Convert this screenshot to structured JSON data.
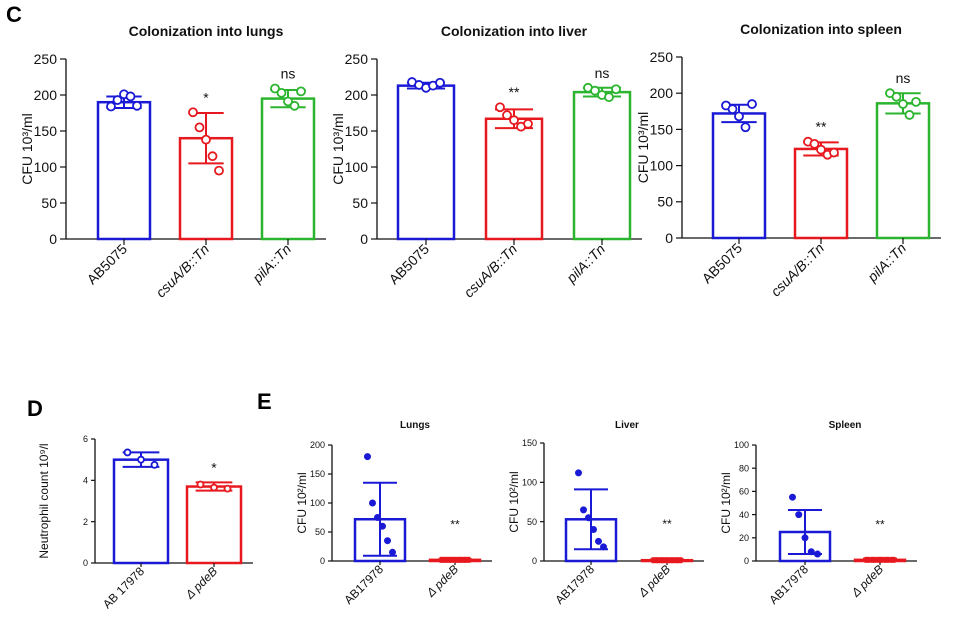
{
  "panels": [
    {
      "letter": "C"
    },
    {
      "letter": "D"
    },
    {
      "letter": "E"
    }
  ],
  "chart_data": [
    {
      "type": "bar",
      "panel": "C",
      "title": "Colonization into lungs",
      "ylabel": "CFU 10³/ml",
      "xlabel": "",
      "ylim": [
        0,
        250
      ],
      "yticks": [
        0,
        50,
        100,
        150,
        200,
        250
      ],
      "categories": [
        "AB5075",
        "csuA/B::Tn",
        "pilA::Tn"
      ],
      "italic_categories": [
        false,
        true,
        true
      ],
      "colors": [
        "#1a1ad6",
        "#e8191e",
        "#2bb52e"
      ],
      "values": [
        190,
        140,
        195
      ],
      "errors": [
        8,
        35,
        12
      ],
      "points": [
        [
          184,
          193,
          201,
          198,
          185
        ],
        [
          176,
          155,
          138,
          115,
          95
        ],
        [
          209,
          203,
          191,
          185,
          205
        ]
      ],
      "significance": [
        "",
        "*",
        "ns"
      ]
    },
    {
      "type": "bar",
      "panel": "C",
      "title": "Colonization into liver",
      "ylabel": "CFU 10³/ml",
      "xlabel": "",
      "ylim": [
        0,
        250
      ],
      "yticks": [
        0,
        50,
        100,
        150,
        200,
        250
      ],
      "categories": [
        "AB5075",
        "csuA/B::Tn",
        "pilA::Tn"
      ],
      "italic_categories": [
        false,
        true,
        true
      ],
      "colors": [
        "#1a1ad6",
        "#e8191e",
        "#2bb52e"
      ],
      "values": [
        213,
        167,
        204
      ],
      "errors": [
        4,
        13,
        6
      ],
      "points": [
        [
          218,
          214,
          210,
          213,
          217
        ],
        [
          183,
          172,
          165,
          156,
          160
        ],
        [
          210,
          206,
          200,
          197,
          208
        ]
      ],
      "significance": [
        "",
        "**",
        "ns"
      ]
    },
    {
      "type": "bar",
      "panel": "C",
      "title": "Colonization into spleen",
      "ylabel": "CFU 10³/ml",
      "xlabel": "",
      "ylim": [
        0,
        250
      ],
      "yticks": [
        0,
        50,
        100,
        150,
        200,
        250
      ],
      "categories": [
        "AB5075",
        "csuA/B::Tn",
        "pilA::Tn"
      ],
      "italic_categories": [
        false,
        true,
        true
      ],
      "colors": [
        "#1a1ad6",
        "#e8191e",
        "#2bb52e"
      ],
      "values": [
        172,
        123,
        186
      ],
      "errors": [
        12,
        9,
        14
      ],
      "points": [
        [
          183,
          178,
          168,
          153,
          185
        ],
        [
          133,
          130,
          122,
          115,
          118
        ],
        [
          200,
          195,
          185,
          170,
          188
        ]
      ],
      "significance": [
        "",
        "**",
        "ns"
      ]
    },
    {
      "type": "bar",
      "panel": "D",
      "title": "",
      "ylabel": "Neutrophil count 10⁹/l",
      "xlabel": "",
      "ylim": [
        0,
        6
      ],
      "yticks": [
        0,
        2,
        4,
        6
      ],
      "categories": [
        "AB 17978",
        "Δ pdeB"
      ],
      "italic_categories": [
        false,
        true
      ],
      "colors": [
        "#1a1ad6",
        "#e8191e"
      ],
      "values": [
        5.0,
        3.7
      ],
      "errors": [
        0.35,
        0.2
      ],
      "points": [
        [
          5.35,
          5.0,
          4.75
        ],
        [
          3.8,
          3.65,
          3.6
        ]
      ],
      "significance": [
        "",
        "*"
      ]
    },
    {
      "type": "bar",
      "panel": "E",
      "title": "Lungs",
      "ylabel": "CFU 10²/ml",
      "xlabel": "",
      "ylim": [
        0,
        200
      ],
      "yticks": [
        0,
        50,
        100,
        150,
        200
      ],
      "categories": [
        "AB17978",
        "Δ pdeB"
      ],
      "italic_categories": [
        false,
        true
      ],
      "colors": [
        "#1a1ad6",
        "#e8191e"
      ],
      "values": [
        72,
        2
      ],
      "errors": [
        63,
        1
      ],
      "points": [
        [
          180,
          100,
          75,
          60,
          35,
          15
        ],
        [
          2,
          2,
          2,
          2,
          2,
          2
        ]
      ],
      "significance": [
        "",
        "**"
      ]
    },
    {
      "type": "bar",
      "panel": "E",
      "title": "Liver",
      "ylabel": "CFU 10²/ml",
      "xlabel": "",
      "ylim": [
        0,
        150
      ],
      "yticks": [
        0,
        50,
        100,
        150
      ],
      "categories": [
        "AB17978",
        "Δ pdeB"
      ],
      "italic_categories": [
        false,
        true
      ],
      "colors": [
        "#1a1ad6",
        "#e8191e"
      ],
      "values": [
        53,
        1
      ],
      "errors": [
        38,
        1
      ],
      "points": [
        [
          112,
          65,
          55,
          40,
          25,
          18
        ],
        [
          1,
          1,
          1,
          1,
          1,
          1
        ]
      ],
      "significance": [
        "",
        "**"
      ]
    },
    {
      "type": "bar",
      "panel": "E",
      "title": "Spleen",
      "ylabel": "CFU 10²/ml",
      "xlabel": "",
      "ylim": [
        0,
        100
      ],
      "yticks": [
        0,
        20,
        40,
        60,
        80,
        100
      ],
      "categories": [
        "AB17978",
        "Δ pdeB"
      ],
      "italic_categories": [
        false,
        true
      ],
      "colors": [
        "#1a1ad6",
        "#e8191e"
      ],
      "values": [
        25,
        1
      ],
      "errors": [
        19,
        1
      ],
      "points": [
        [
          55,
          40,
          20,
          8,
          6
        ],
        [
          1,
          1,
          1,
          1,
          1
        ]
      ],
      "significance": [
        "",
        "**"
      ]
    }
  ]
}
